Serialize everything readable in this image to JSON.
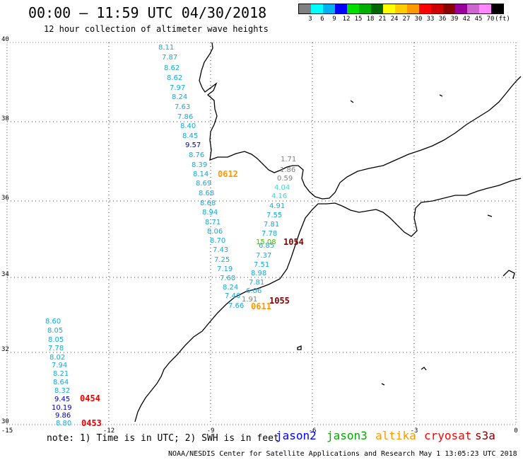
{
  "header": {
    "title": "00:00 – 11:59 UTC 04/30/2018",
    "subtitle": "12 hour collection of altimeter wave heights"
  },
  "legend": {
    "colors": [
      "#808080",
      "#00ffff",
      "#00b0f0",
      "#0000ff",
      "#00dd00",
      "#00b000",
      "#006600",
      "#ffff00",
      "#ffcc00",
      "#ff9900",
      "#ff0000",
      "#cc0000",
      "#880000",
      "#990099",
      "#cc66cc",
      "#ff88ff",
      "#000000"
    ],
    "labels": [
      "3",
      "6",
      "9",
      "12",
      "15",
      "18",
      "21",
      "24",
      "27",
      "30",
      "33",
      "36",
      "39",
      "42",
      "45",
      "70",
      "(ft)"
    ]
  },
  "axes": {
    "lat_labels": [
      "40",
      "38",
      "36",
      "34",
      "32",
      "30"
    ],
    "lon_labels": [
      "-15",
      "-12",
      "-9",
      "-6",
      "-3",
      "0"
    ]
  },
  "wave_heights": [
    {
      "v": "8.11",
      "c": "#11aadd"
    },
    {
      "v": "7.87",
      "c": "#11aadd"
    },
    {
      "v": "8.62",
      "c": "#11aadd"
    },
    {
      "v": "8.62",
      "c": "#11aadd"
    },
    {
      "v": "7.97",
      "c": "#11aadd"
    },
    {
      "v": "8.24",
      "c": "#11aadd"
    },
    {
      "v": "7.63",
      "c": "#11aadd"
    },
    {
      "v": "7.86",
      "c": "#11aadd"
    },
    {
      "v": "8.40",
      "c": "#11aadd"
    },
    {
      "v": "8.45",
      "c": "#11aadd"
    },
    {
      "v": "9.57",
      "c": "#0000aa"
    },
    {
      "v": "8.76",
      "c": "#11aadd"
    },
    {
      "v": "8.39",
      "c": "#11aadd"
    },
    {
      "v": "8.14",
      "c": "#11aadd"
    },
    {
      "v": "8.69",
      "c": "#11aadd"
    },
    {
      "v": "8.68",
      "c": "#11aadd"
    },
    {
      "v": "8.68",
      "c": "#11aadd"
    },
    {
      "v": "8.94",
      "c": "#11aadd"
    },
    {
      "v": "8.71",
      "c": "#11aadd"
    },
    {
      "v": "8.06",
      "c": "#11aadd"
    },
    {
      "v": "8.70",
      "c": "#11aadd"
    },
    {
      "v": "7.43",
      "c": "#11aadd"
    },
    {
      "v": "7.25",
      "c": "#11aadd"
    },
    {
      "v": "7.19",
      "c": "#11aadd"
    },
    {
      "v": "7.60",
      "c": "#11aadd"
    },
    {
      "v": "8.24",
      "c": "#11aadd"
    },
    {
      "v": "7.46",
      "c": "#11aadd"
    },
    {
      "v": "7.66",
      "c": "#11aadd"
    },
    {
      "v": "1.71",
      "c": "#808080"
    },
    {
      "v": "1.86",
      "c": "#808080"
    },
    {
      "v": "0.59",
      "c": "#808080"
    },
    {
      "v": "4.04",
      "c": "#33dddd"
    },
    {
      "v": "4.16",
      "c": "#33dddd"
    },
    {
      "v": "4.91",
      "c": "#11aadd"
    },
    {
      "v": "7.55",
      "c": "#11aadd"
    },
    {
      "v": "7.81",
      "c": "#11aadd"
    },
    {
      "v": "7.78",
      "c": "#11aadd"
    },
    {
      "v": "15.08",
      "c": "#44bb00"
    },
    {
      "v": "6.85",
      "c": "#11aadd"
    },
    {
      "v": "7.37",
      "c": "#11aadd"
    },
    {
      "v": "7.51",
      "c": "#11aadd"
    },
    {
      "v": "8.98",
      "c": "#11aadd"
    },
    {
      "v": "7.81",
      "c": "#11aadd"
    },
    {
      "v": "6.06",
      "c": "#11aadd"
    },
    {
      "v": "1.91",
      "c": "#808080"
    },
    {
      "v": "8.60",
      "c": "#11aadd"
    },
    {
      "v": "8.05",
      "c": "#11aadd"
    },
    {
      "v": "8.05",
      "c": "#11aadd"
    },
    {
      "v": "7.78",
      "c": "#11aadd"
    },
    {
      "v": "8.02",
      "c": "#11aadd"
    },
    {
      "v": "7.94",
      "c": "#11aadd"
    },
    {
      "v": "8.21",
      "c": "#11aadd"
    },
    {
      "v": "8.64",
      "c": "#11aadd"
    },
    {
      "v": "8.32",
      "c": "#11aadd"
    },
    {
      "v": "9.45",
      "c": "#0000aa"
    },
    {
      "v": "10.19",
      "c": "#0000aa"
    },
    {
      "v": "9.86",
      "c": "#0000aa"
    },
    {
      "v": "8.80",
      "c": "#11aadd"
    }
  ],
  "pass_times": [
    {
      "v": "0612",
      "c": "#ff9900"
    },
    {
      "v": "1054",
      "c": "#880000"
    },
    {
      "v": "0611",
      "c": "#ff9900"
    },
    {
      "v": "1055",
      "c": "#880000"
    },
    {
      "v": "0454",
      "c": "#ee0000"
    },
    {
      "v": "0453",
      "c": "#ee0000"
    }
  ],
  "note": "note: 1) Time is in UTC; 2) SWH is in feet",
  "satellites": [
    {
      "name": "jason2",
      "color": "#0000ff"
    },
    {
      "name": "jason3",
      "color": "#00aa00"
    },
    {
      "name": "altika",
      "color": "#ff9900"
    },
    {
      "name": "cryosat",
      "color": "#ff0000"
    },
    {
      "name": "s3a",
      "color": "#880000"
    }
  ],
  "footer": "NOAA/NESDIS Center for Satellite Applications and Research    May  1 13:05:23 UTC 2018"
}
